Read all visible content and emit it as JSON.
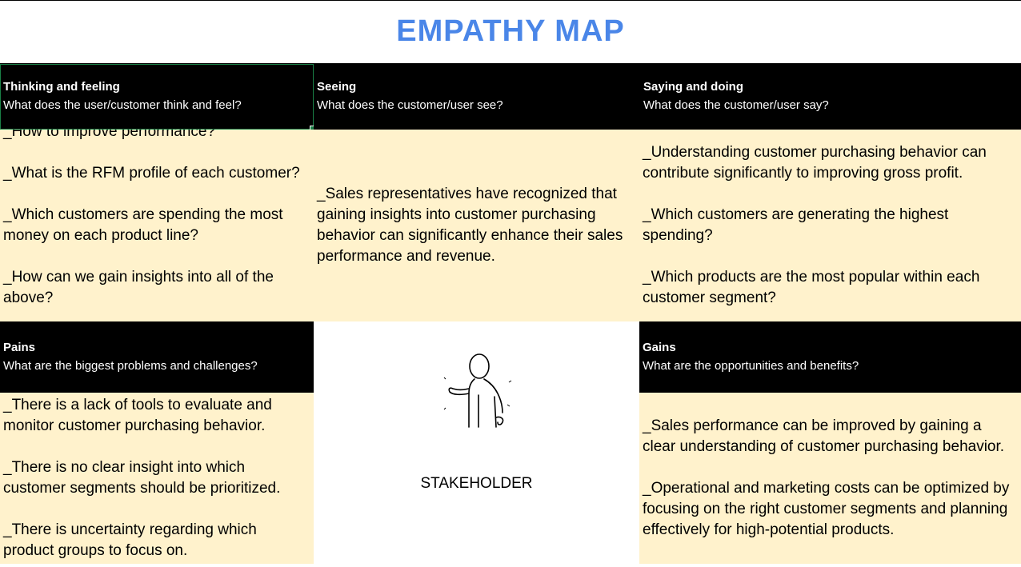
{
  "title": "EMPATHY MAP",
  "sections": {
    "thinking": {
      "title": "Thinking and feeling",
      "subtitle": "What does the user/customer think and feel?",
      "items": [
        "_How to improve performance?",
        "_What is the RFM profile of each customer?",
        "_Which customers are spending the most money on each product line?",
        "_How can we gain insights into all of the above?"
      ]
    },
    "seeing": {
      "title": "Seeing",
      "subtitle": "What does the customer/user see?",
      "items": [
        "_Sales representatives have recognized that gaining insights into customer purchasing behavior can significantly enhance their sales performance and revenue."
      ]
    },
    "saying": {
      "title": "Saying and doing",
      "subtitle": "What does the customer/user say?",
      "items": [
        "_Understanding customer purchasing behavior can contribute significantly to improving gross profit.",
        "_Which customers are generating the highest spending?",
        "_Which products are the most popular within each customer segment?"
      ]
    },
    "pains": {
      "title": "Pains",
      "subtitle": "What are the biggest problems and challenges?",
      "items": [
        "_There is a lack of tools to evaluate and monitor customer purchasing behavior.",
        "_There is no clear insight into which customer segments should be prioritized.",
        "_There is uncertainty regarding which product groups to focus on."
      ]
    },
    "gains": {
      "title": "Gains",
      "subtitle": "What are the opportunities and benefits?",
      "items": [
        "_Sales performance can be improved by gaining a clear understanding of customer purchasing behavior.",
        "_Operational and marketing costs can be optimized by focusing on the right customer segments and planning effectively for high-potential products."
      ]
    }
  },
  "stakeholder": {
    "label": "STAKEHOLDER",
    "icon": "stick-figure-icon"
  },
  "colors": {
    "title": "#4a86e8",
    "header_bg": "#000000",
    "cell_bg": "#fff2cc",
    "selection": "#1a7f46"
  }
}
